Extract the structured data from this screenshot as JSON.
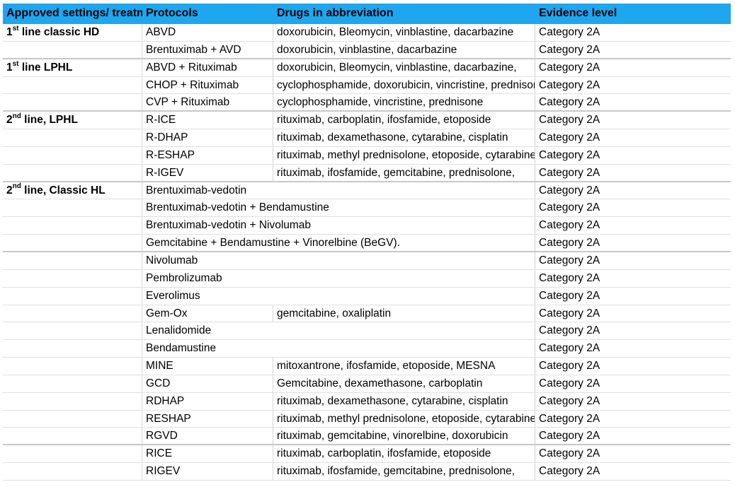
{
  "table": {
    "headers": [
      "Approved settings/ treatment",
      "Protocols",
      "Drugs in abbreviation",
      "Evidence level"
    ],
    "rows": [
      {
        "setting_pre": "1",
        "setting_sup": "st",
        "setting_post": " line classic HD",
        "protocol": "ABVD",
        "drugs": "doxorubicin, Bleomycin, vinblastine, dacarbazine",
        "evidence": "Category 2A",
        "thick": false
      },
      {
        "setting_pre": "",
        "setting_sup": "",
        "setting_post": "",
        "protocol": "Brentuximab + AVD",
        "drugs": "doxorubicin, vinblastine, dacarbazine",
        "evidence": "Category 2A",
        "thick": true
      },
      {
        "setting_pre": "1",
        "setting_sup": "st",
        "setting_post": " line LPHL",
        "protocol": "ABVD + Rituximab",
        "drugs": "doxorubicin, Bleomycin, vinblastine, dacarbazine,",
        "evidence": "Category 2A",
        "thick": false
      },
      {
        "setting_pre": "",
        "setting_sup": "",
        "setting_post": "",
        "protocol": "CHOP + Rituximab",
        "drugs": "cyclophosphamide, doxorubicin, vincristine, prednisone",
        "evidence": "Category 2A",
        "thick": false
      },
      {
        "setting_pre": "",
        "setting_sup": "",
        "setting_post": "",
        "protocol": "CVP + Rituximab",
        "drugs": "cyclophosphamide, vincristine, prednisone",
        "evidence": "Category 2A",
        "thick": true
      },
      {
        "setting_pre": "2",
        "setting_sup": "nd",
        "setting_post": " line, LPHL",
        "protocol": "R-ICE",
        "drugs": "rituximab, carboplatin, ifosfamide, etoposide",
        "evidence": "Category 2A",
        "thick": false
      },
      {
        "setting_pre": "",
        "setting_sup": "",
        "setting_post": "",
        "protocol": "R-DHAP",
        "drugs": "rituximab, dexamethasone, cytarabine, cisplatin",
        "evidence": "Category 2A",
        "thick": false
      },
      {
        "setting_pre": "",
        "setting_sup": "",
        "setting_post": "",
        "protocol": "R-ESHAP",
        "drugs": "rituximab, methyl prednisolone, etoposide, cytarabine",
        "evidence": "Category 2A",
        "thick": false
      },
      {
        "setting_pre": "",
        "setting_sup": "",
        "setting_post": "",
        "protocol": "R-IGEV",
        "drugs": "rituximab, ifosfamide, gemcitabine, prednisolone,",
        "evidence": "Category 2A",
        "thick": true
      },
      {
        "setting_pre": "2",
        "setting_sup": "nd",
        "setting_post": " line, Classic HL",
        "protocol": "Brentuximab-vedotin",
        "drugs": "",
        "evidence": "Category 2A",
        "thick": false
      },
      {
        "setting_pre": "",
        "setting_sup": "",
        "setting_post": "",
        "protocol": "Brentuximab-vedotin + Bendamustine",
        "drugs": "",
        "evidence": "Category 2A",
        "thick": false
      },
      {
        "setting_pre": "",
        "setting_sup": "",
        "setting_post": "",
        "protocol": "Brentuximab-vedotin + Nivolumab",
        "drugs": "",
        "evidence": "Category 2A",
        "thick": false
      },
      {
        "setting_pre": "",
        "setting_sup": "",
        "setting_post": "",
        "protocol": "Gemcitabine + Bendamustine + Vinorelbine (BeGV).",
        "drugs": "",
        "evidence": "Category 2A",
        "thick": true
      },
      {
        "setting_pre": "",
        "setting_sup": "",
        "setting_post": "",
        "protocol": "Nivolumab",
        "drugs": "",
        "evidence": "Category 2A",
        "thick": false
      },
      {
        "setting_pre": "",
        "setting_sup": "",
        "setting_post": "",
        "protocol": "Pembrolizumab",
        "drugs": "",
        "evidence": "Category 2A",
        "thick": false
      },
      {
        "setting_pre": "",
        "setting_sup": "",
        "setting_post": "",
        "protocol": "Everolimus",
        "drugs": "",
        "evidence": "Category 2A",
        "thick": false
      },
      {
        "setting_pre": "",
        "setting_sup": "",
        "setting_post": "",
        "protocol": "Gem-Ox",
        "drugs": "gemcitabine, oxaliplatin",
        "evidence": "Category 2A",
        "thick": false
      },
      {
        "setting_pre": "",
        "setting_sup": "",
        "setting_post": "",
        "protocol": "Lenalidomide",
        "drugs": "",
        "evidence": "Category 2A",
        "thick": false
      },
      {
        "setting_pre": "",
        "setting_sup": "",
        "setting_post": "",
        "protocol": "Bendamustine",
        "drugs": "",
        "evidence": "Category 2A",
        "thick": false
      },
      {
        "setting_pre": "",
        "setting_sup": "",
        "setting_post": "",
        "protocol": "MINE",
        "drugs": "mitoxantrone, ifosfamide, etoposide, MESNA",
        "evidence": "Category 2A",
        "thick": false
      },
      {
        "setting_pre": "",
        "setting_sup": "",
        "setting_post": "",
        "protocol": "GCD",
        "drugs": "Gemcitabine, dexamethasone, carboplatin",
        "evidence": "Category 2A",
        "thick": false
      },
      {
        "setting_pre": "",
        "setting_sup": "",
        "setting_post": "",
        "protocol": "RDHAP",
        "drugs": "rituximab, dexamethasone, cytarabine, cisplatin",
        "evidence": "Category 2A",
        "thick": false
      },
      {
        "setting_pre": "",
        "setting_sup": "",
        "setting_post": "",
        "protocol": "RESHAP",
        "drugs": "rituximab, methyl prednisolone, etoposide, cytarabine",
        "evidence": "Category 2A",
        "thick": false
      },
      {
        "setting_pre": "",
        "setting_sup": "",
        "setting_post": "",
        "protocol": "RGVD",
        "drugs": "rituximab, gemcitabine, vinorelbine, doxorubicin",
        "evidence": "Category 2A",
        "thick": true
      },
      {
        "setting_pre": "",
        "setting_sup": "",
        "setting_post": "",
        "protocol": "RICE",
        "drugs": "rituximab, carboplatin, ifosfamide, etoposide",
        "evidence": "Category 2A",
        "thick": false
      },
      {
        "setting_pre": "",
        "setting_sup": "",
        "setting_post": "",
        "protocol": "RIGEV",
        "drugs": "rituximab, ifosfamide, gemcitabine, prednisolone,",
        "evidence": "Category 2A",
        "thick": false
      }
    ]
  },
  "colors": {
    "header_bg": "#1ea6ee",
    "grid": "#d4d4d4"
  }
}
